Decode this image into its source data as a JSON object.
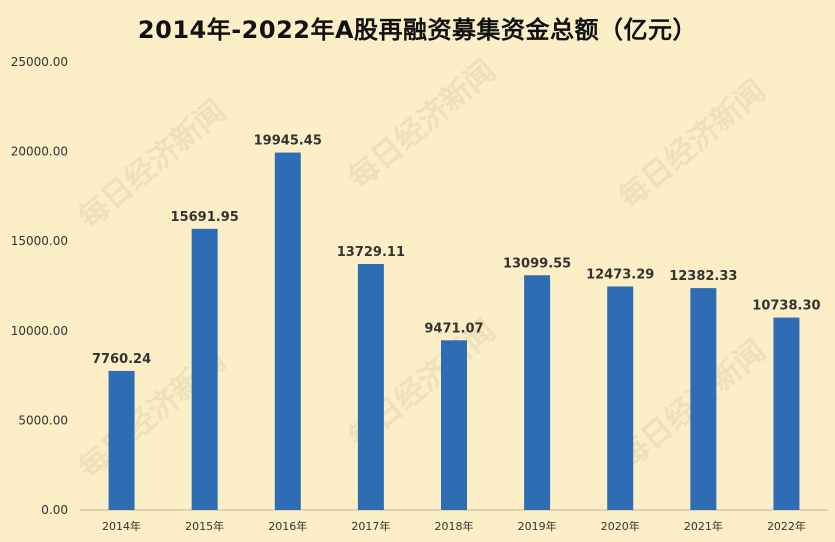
{
  "colors": {
    "background": "#FCEFC7",
    "bar": "#2E6DB4"
  },
  "watermark": "每日经济新闻",
  "chart_data": {
    "type": "bar",
    "title": "2014年-2022年A股再融资募集资金总额（亿元）",
    "xlabel": "",
    "ylabel": "",
    "categories": [
      "2014年",
      "2015年",
      "2016年",
      "2017年",
      "2018年",
      "2019年",
      "2020年",
      "2021年",
      "2022年"
    ],
    "values": [
      7760.24,
      15691.95,
      19945.45,
      13729.11,
      9471.07,
      13099.55,
      12473.29,
      12382.33,
      10738.3
    ],
    "value_labels": [
      "7760.24",
      "15691.95",
      "19945.45",
      "13729.11",
      "9471.07",
      "13099.55",
      "12473.29",
      "12382.33",
      "10738.30"
    ],
    "ylim": [
      0,
      25000
    ],
    "yticks": [
      0,
      5000,
      10000,
      15000,
      20000,
      25000
    ],
    "ytick_labels": [
      "0.00",
      "5000.00",
      "10000.00",
      "15000.00",
      "20000.00",
      "25000.00"
    ],
    "grid": false,
    "legend": "none"
  }
}
